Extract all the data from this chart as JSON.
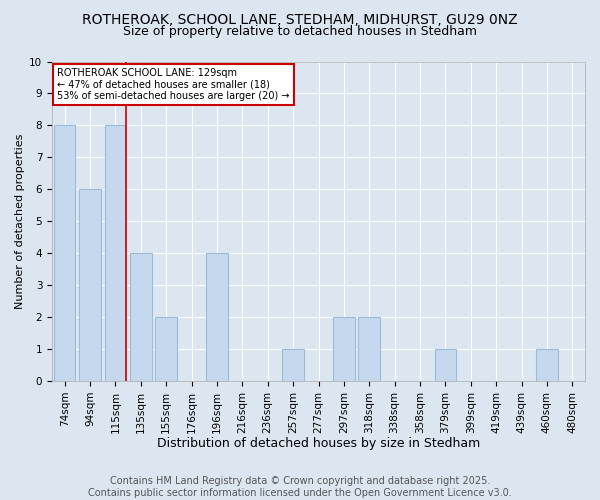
{
  "title1": "ROTHEROAK, SCHOOL LANE, STEDHAM, MIDHURST, GU29 0NZ",
  "title2": "Size of property relative to detached houses in Stedham",
  "xlabel": "Distribution of detached houses by size in Stedham",
  "ylabel": "Number of detached properties",
  "categories": [
    "74sqm",
    "94sqm",
    "115sqm",
    "135sqm",
    "155sqm",
    "176sqm",
    "196sqm",
    "216sqm",
    "236sqm",
    "257sqm",
    "277sqm",
    "297sqm",
    "318sqm",
    "338sqm",
    "358sqm",
    "379sqm",
    "399sqm",
    "419sqm",
    "439sqm",
    "460sqm",
    "480sqm"
  ],
  "values": [
    8,
    6,
    8,
    4,
    2,
    0,
    4,
    0,
    0,
    1,
    0,
    2,
    2,
    0,
    0,
    1,
    0,
    0,
    0,
    1,
    0
  ],
  "highlight_index": 2,
  "bar_color": "#c5d8ee",
  "bar_edge_color": "#9bbcd8",
  "redline_color": "#cc0000",
  "annotation_text": "ROTHEROAK SCHOOL LANE: 129sqm\n← 47% of detached houses are smaller (18)\n53% of semi-detached houses are larger (20) →",
  "annotation_box_color": "#ffffff",
  "annotation_box_edge": "#cc0000",
  "ylim": [
    0,
    10
  ],
  "yticks": [
    0,
    1,
    2,
    3,
    4,
    5,
    6,
    7,
    8,
    9,
    10
  ],
  "background_color": "#dce6f1",
  "plot_bg_color": "#dce6f1",
  "grid_color": "#ffffff",
  "footer": "Contains HM Land Registry data © Crown copyright and database right 2025.\nContains public sector information licensed under the Open Government Licence v3.0.",
  "title1_fontsize": 10,
  "title2_fontsize": 9,
  "xlabel_fontsize": 9,
  "ylabel_fontsize": 8,
  "tick_fontsize": 7.5,
  "annotation_fontsize": 7,
  "footer_fontsize": 7
}
